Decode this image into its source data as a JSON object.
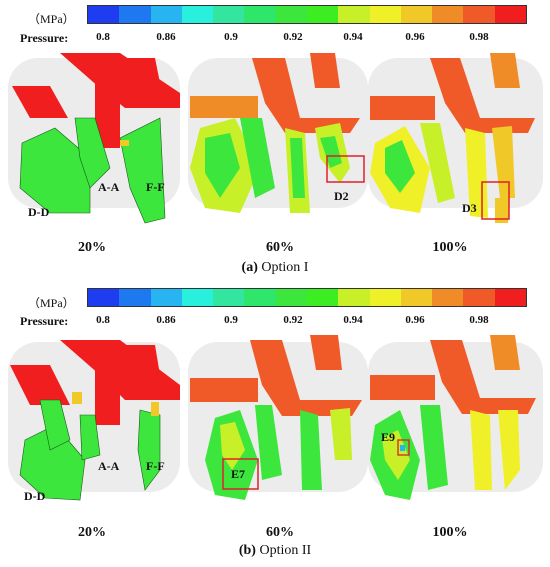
{
  "colorbar": {
    "unit": "（MPa）",
    "label": "Pressure:",
    "ticks": [
      "0.8",
      "0.86",
      "0.9",
      "0.92",
      "0.94",
      "0.96",
      "0.98"
    ],
    "colors": [
      "#1e3cf0",
      "#1e78f0",
      "#28b4f0",
      "#28f0dc",
      "#32e6a0",
      "#2ee66a",
      "#3ce63c",
      "#3ced22",
      "#c8f028",
      "#f0f028",
      "#f0c828",
      "#f08c28",
      "#f05a28",
      "#f01e1e"
    ]
  },
  "panels": [
    {
      "caption_letter": "(a)",
      "caption_text": " Option I",
      "cases": [
        "20%",
        "60%",
        "100%"
      ],
      "section_labels": [
        "A-A",
        "F-F",
        "D-D"
      ],
      "detail_labels": [
        "D2",
        "D3"
      ]
    },
    {
      "caption_letter": "(b)",
      "caption_text": " Option II",
      "cases": [
        "20%",
        "60%",
        "100%"
      ],
      "section_labels": [
        "A-A",
        "F-F",
        "D-D"
      ],
      "detail_labels": [
        "E7",
        "E9"
      ]
    }
  ],
  "highlight_color": "#e0202a"
}
